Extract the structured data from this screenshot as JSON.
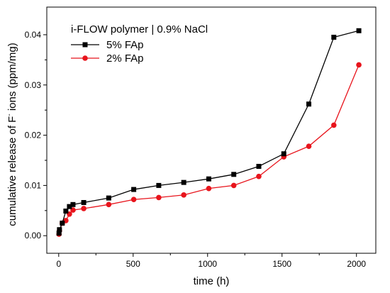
{
  "chart_data": {
    "type": "line",
    "annotation": "i-FLOW polymer | 0.9% NaCl",
    "xlabel": "time (h)",
    "ylabel_main": "cumulative release of F",
    "ylabel_superscript": "-",
    "ylabel_tail": " ions (ppm/mg)",
    "xlim": [
      -80,
      2130
    ],
    "ylim": [
      -0.0035,
      0.0455
    ],
    "xticks": [
      0,
      500,
      1000,
      1500,
      2000
    ],
    "xtick_labels": [
      "0",
      "500",
      "1000",
      "1500",
      "2000"
    ],
    "yticks": [
      0.0,
      0.01,
      0.02,
      0.03,
      0.04
    ],
    "ytick_labels": [
      "0.00",
      "0.01",
      "0.02",
      "0.03",
      "0.04"
    ],
    "legend_position": "top-left",
    "grid": false,
    "series": [
      {
        "name": "5% FAp",
        "color": "#000000",
        "marker": "square",
        "x": [
          2,
          5,
          24,
          48,
          72,
          96,
          168,
          336,
          504,
          672,
          840,
          1008,
          1176,
          1344,
          1512,
          1680,
          1848,
          2016
        ],
        "y": [
          0.0005,
          0.0012,
          0.0025,
          0.0049,
          0.0058,
          0.0062,
          0.0066,
          0.0075,
          0.0092,
          0.01,
          0.0106,
          0.0113,
          0.0122,
          0.0138,
          0.0163,
          0.0262,
          0.0395,
          0.0408
        ]
      },
      {
        "name": "2% FAp",
        "color": "#e8141c",
        "marker": "circle",
        "x": [
          2,
          5,
          24,
          48,
          72,
          96,
          168,
          336,
          504,
          672,
          840,
          1008,
          1176,
          1344,
          1512,
          1680,
          1848,
          2016
        ],
        "y": [
          0.0003,
          0.001,
          0.0025,
          0.003,
          0.0043,
          0.0051,
          0.0054,
          0.0062,
          0.0072,
          0.0076,
          0.0081,
          0.0094,
          0.01,
          0.0118,
          0.0157,
          0.0178,
          0.022,
          0.034
        ]
      }
    ]
  }
}
